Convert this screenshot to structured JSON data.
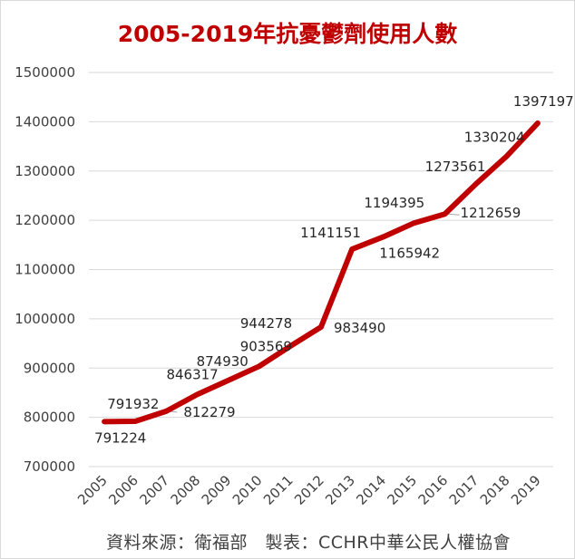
{
  "chart_data": {
    "type": "line",
    "title": "2005-2019年抗憂鬱劑使用人數",
    "categories": [
      "2005",
      "2006",
      "2007",
      "2008",
      "2009",
      "2010",
      "2011",
      "2012",
      "2013",
      "2014",
      "2015",
      "2016",
      "2017",
      "2018",
      "2019"
    ],
    "series": [
      {
        "values": [
          791224,
          791932,
          812279,
          846317,
          874930,
          903569,
          944278,
          983490,
          1141151,
          1165942,
          1194395,
          1212659,
          1273561,
          1330204,
          1397197
        ]
      }
    ],
    "data_labels": [
      "791224",
      "791932",
      "812279",
      "846317",
      "874930",
      "903569",
      "944278",
      "983490",
      "1141151",
      "1165942",
      "1194395",
      "1212659",
      "1273561",
      "1330204",
      "1397197"
    ],
    "ylim": [
      700000,
      1500000
    ],
    "yticks": [
      700000,
      800000,
      900000,
      1000000,
      1100000,
      1200000,
      1300000,
      1400000,
      1500000
    ],
    "ytick_labels": [
      "700000",
      "800000",
      "900000",
      "1000000",
      "1100000",
      "1200000",
      "1300000",
      "1400000",
      "1500000"
    ],
    "grid": true,
    "line_color": "#c00000",
    "source": "資料來源：衛福部　製表：CCHR中華公民人權協會"
  }
}
